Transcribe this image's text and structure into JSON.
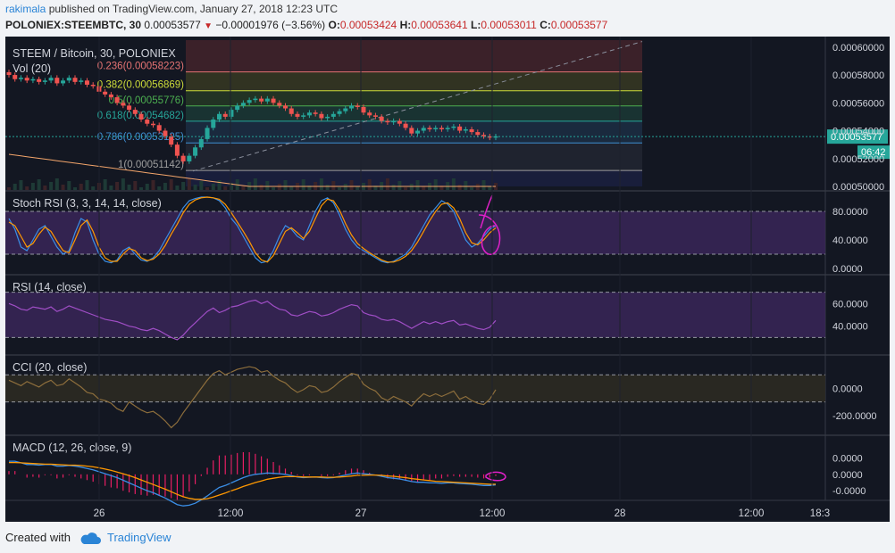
{
  "header": {
    "user": "rakimala",
    "published": "published on TradingView.com, January 27, 2018 12:23 UTC",
    "symbol": "POLONIEX:STEEMBTC, 30",
    "last": "0.00053577",
    "change": "−0.00001976 (−3.56%)",
    "o_label": "O:",
    "o_val": "0.00053424",
    "h_label": "H:",
    "h_val": "0.00053641",
    "l_label": "L:",
    "l_val": "0.00053011",
    "c_label": "C:",
    "c_val": "0.00053577"
  },
  "footer": {
    "created_with": "Created with",
    "brand": "TradingView"
  },
  "colors": {
    "bg": "#131722",
    "up": "#26a69a",
    "down": "#ef5350",
    "price_badge": "#26a69a"
  },
  "chart_data": [
    {
      "type": "candlestick",
      "title": "STEEM / Bitcoin, 30, POLONIEX",
      "volume_label": "Vol (20)",
      "ylim": [
        0.0005,
        0.000605
      ],
      "y_ticks": [
        "0.00060000",
        "0.00058000",
        "0.00056000",
        "0.00054000",
        "0.00052000",
        "0.00050000"
      ],
      "current_price": "0.00053577",
      "countdown": "06:42",
      "fib_levels": [
        {
          "label": "0.236(0.00058223)",
          "value": 0.00058223,
          "color": "#e57373"
        },
        {
          "label": "0.382(0.00056869)",
          "value": 0.00056869,
          "color": "#cddc39"
        },
        {
          "label": "0.5(0.00055776)",
          "value": 0.00055776,
          "color": "#4caf50"
        },
        {
          "label": "0.618(0.00054682)",
          "value": 0.00054682,
          "color": "#26a69a"
        },
        {
          "label": "0.786(0.00053125)",
          "value": 0.00053125,
          "color": "#3f8fd2"
        },
        {
          "label": "1(0.00051142)",
          "value": 0.00051142,
          "color": "#9e9e9e"
        }
      ],
      "candles_close": [
        0.00058,
        0.000577,
        0.000578,
        0.000576,
        0.000577,
        0.000575,
        0.000576,
        0.000578,
        0.000574,
        0.000576,
        0.000578,
        0.000575,
        0.000576,
        0.000573,
        0.000572,
        0.000568,
        0.000566,
        0.000564,
        0.00056,
        0.000558,
        0.000555,
        0.000552,
        0.000548,
        0.000545,
        0.000544,
        0.00054,
        0.000536,
        0.00053,
        0.000522,
        0.000518,
        0.000522,
        0.000528,
        0.000534,
        0.000542,
        0.000548,
        0.000552,
        0.00055,
        0.000555,
        0.000558,
        0.00056,
        0.000562,
        0.000563,
        0.000561,
        0.000563,
        0.00056,
        0.000558,
        0.000556,
        0.000552,
        0.00055,
        0.000551,
        0.000553,
        0.000552,
        0.000549,
        0.00055,
        0.000552,
        0.000554,
        0.000556,
        0.000558,
        0.000557,
        0.000553,
        0.000551,
        0.00055,
        0.000547,
        0.000546,
        0.000547,
        0.000545,
        0.000542,
        0.000538,
        0.00054,
        0.000542,
        0.000541,
        0.000542,
        0.000541,
        0.000542,
        0.000543,
        0.00054,
        0.000541,
        0.000539,
        0.000537,
        0.000536,
        0.000535,
        0.000536
      ]
    },
    {
      "type": "line",
      "title": "Stoch RSI (3, 3, 14, 14, close)",
      "y_ticks": [
        "80.0000",
        "40.0000",
        "0.0000"
      ],
      "ylim": [
        0,
        100
      ],
      "band": [
        20,
        80
      ],
      "series": [
        {
          "color": "#3a8ee6",
          "values": [
            70,
            55,
            30,
            25,
            40,
            55,
            60,
            45,
            30,
            20,
            25,
            50,
            70,
            65,
            40,
            20,
            10,
            8,
            12,
            25,
            30,
            20,
            12,
            10,
            15,
            25,
            40,
            55,
            70,
            85,
            95,
            98,
            100,
            100,
            99,
            95,
            85,
            70,
            60,
            45,
            30,
            15,
            8,
            10,
            25,
            45,
            60,
            55,
            45,
            40,
            60,
            80,
            95,
            99,
            92,
            75,
            55,
            40,
            30,
            25,
            20,
            15,
            10,
            8,
            10,
            15,
            20,
            30,
            45,
            60,
            75,
            85,
            95,
            90,
            80,
            60,
            40,
            30,
            35,
            45,
            55,
            60
          ]
        },
        {
          "color": "#ff9800",
          "values": [
            65,
            60,
            45,
            30,
            35,
            48,
            58,
            52,
            38,
            25,
            22,
            40,
            60,
            68,
            52,
            30,
            15,
            10,
            10,
            20,
            28,
            25,
            15,
            11,
            13,
            20,
            32,
            48,
            62,
            78,
            90,
            96,
            99,
            100,
            99,
            97,
            90,
            78,
            65,
            52,
            38,
            22,
            12,
            9,
            18,
            35,
            52,
            57,
            50,
            42,
            52,
            70,
            88,
            97,
            95,
            82,
            63,
            47,
            35,
            28,
            22,
            17,
            12,
            9,
            9,
            12,
            17,
            25,
            37,
            52,
            67,
            80,
            90,
            92,
            85,
            70,
            50,
            36,
            33,
            40,
            50,
            57
          ]
        }
      ]
    },
    {
      "type": "line",
      "title": "RSI (14, close)",
      "y_ticks": [
        "60.0000",
        "40.0000"
      ],
      "ylim": [
        20,
        80
      ],
      "band": [
        30,
        70
      ],
      "series": [
        {
          "color": "#a04ec6",
          "values": [
            60,
            58,
            55,
            54,
            57,
            56,
            55,
            57,
            53,
            55,
            58,
            56,
            54,
            52,
            50,
            48,
            46,
            45,
            44,
            42,
            40,
            39,
            37,
            36,
            38,
            36,
            33,
            30,
            28,
            32,
            38,
            43,
            48,
            53,
            56,
            52,
            54,
            57,
            58,
            60,
            62,
            63,
            60,
            62,
            58,
            55,
            54,
            50,
            49,
            51,
            53,
            52,
            49,
            50,
            52,
            55,
            57,
            59,
            58,
            52,
            50,
            49,
            46,
            45,
            46,
            44,
            41,
            38,
            41,
            44,
            42,
            44,
            42,
            44,
            45,
            41,
            42,
            40,
            38,
            37,
            39,
            45
          ]
        }
      ]
    },
    {
      "type": "line",
      "title": "CCI (20, close)",
      "y_ticks": [
        "0.0000",
        "-200.0000"
      ],
      "ylim": [
        -300,
        200
      ],
      "band": [
        -100,
        100
      ],
      "series": [
        {
          "color": "#8d6e3c",
          "values": [
            60,
            40,
            20,
            50,
            30,
            10,
            40,
            60,
            20,
            30,
            70,
            40,
            10,
            -30,
            -40,
            -80,
            -90,
            -110,
            -150,
            -170,
            -100,
            -130,
            -160,
            -180,
            -170,
            -200,
            -240,
            -290,
            -250,
            -180,
            -120,
            -60,
            0,
            60,
            110,
            130,
            100,
            120,
            140,
            150,
            160,
            150,
            120,
            130,
            90,
            60,
            40,
            0,
            -30,
            -10,
            20,
            10,
            -30,
            -20,
            10,
            50,
            80,
            110,
            100,
            30,
            0,
            -20,
            -70,
            -90,
            -60,
            -80,
            -100,
            -130,
            -80,
            -40,
            -60,
            -40,
            -60,
            -40,
            -20,
            -80,
            -60,
            -90,
            -110,
            -120,
            -80,
            -10
          ]
        }
      ]
    },
    {
      "type": "line",
      "title": "MACD (12, 26, close, 9)",
      "y_ticks": [
        "0.0000",
        "0.0000",
        "-0.0000"
      ],
      "ylim": [
        -1.2e-05,
        1e-05
      ],
      "series": [
        {
          "color": "#3a8ee6",
          "values": [
            4,
            4,
            3.5,
            3,
            3,
            2.8,
            3,
            3,
            2.5,
            2.5,
            2.7,
            2.5,
            2.2,
            1.8,
            1.4,
            0.8,
            0.2,
            -0.4,
            -1,
            -1.8,
            -2.6,
            -3.4,
            -4.2,
            -5,
            -5.6,
            -6.4,
            -7.2,
            -8.2,
            -9.2,
            -9.6,
            -9.4,
            -8.8,
            -7.8,
            -6.6,
            -5.2,
            -4,
            -3.4,
            -2.6,
            -1.8,
            -1,
            -0.4,
            0,
            0.2,
            0.4,
            0.3,
            0.2,
            0,
            -0.4,
            -0.8,
            -1,
            -0.9,
            -0.8,
            -1,
            -1.1,
            -1,
            -0.6,
            -0.2,
            0.2,
            0.4,
            0.2,
            0,
            -0.2,
            -0.6,
            -1,
            -1.2,
            -1.4,
            -1.8,
            -2.2,
            -2.4,
            -2.4,
            -2.6,
            -2.6,
            -2.7,
            -2.6,
            -2.6,
            -2.8,
            -2.9,
            -3,
            -3.2,
            -3.4,
            -3.4,
            -3.2
          ]
        },
        {
          "color": "#ff9800",
          "values": [
            3.6,
            3.6,
            3.5,
            3.4,
            3.3,
            3.2,
            3.1,
            3.1,
            3,
            2.9,
            2.8,
            2.8,
            2.7,
            2.5,
            2.3,
            2,
            1.6,
            1.2,
            0.7,
            0.2,
            -0.4,
            -1,
            -1.7,
            -2.4,
            -3.1,
            -3.8,
            -4.5,
            -5.3,
            -6.1,
            -6.8,
            -7.3,
            -7.6,
            -7.6,
            -7.4,
            -6.9,
            -6.3,
            -5.7,
            -5,
            -4.4,
            -3.7,
            -3.1,
            -2.5,
            -2,
            -1.5,
            -1.2,
            -0.9,
            -0.7,
            -0.7,
            -0.7,
            -0.8,
            -0.8,
            -0.8,
            -0.8,
            -0.9,
            -0.9,
            -0.8,
            -0.7,
            -0.5,
            -0.3,
            -0.3,
            -0.2,
            -0.2,
            -0.3,
            -0.5,
            -0.6,
            -0.8,
            -1,
            -1.3,
            -1.5,
            -1.7,
            -1.9,
            -2.1,
            -2.2,
            -2.3,
            -2.4,
            -2.5,
            -2.6,
            -2.7,
            -2.8,
            -2.9,
            -3,
            -3
          ]
        }
      ]
    }
  ],
  "x_axis": {
    "ticks": [
      "26",
      "12:00",
      "27",
      "12:00",
      "28",
      "12:00",
      "18:3"
    ]
  }
}
